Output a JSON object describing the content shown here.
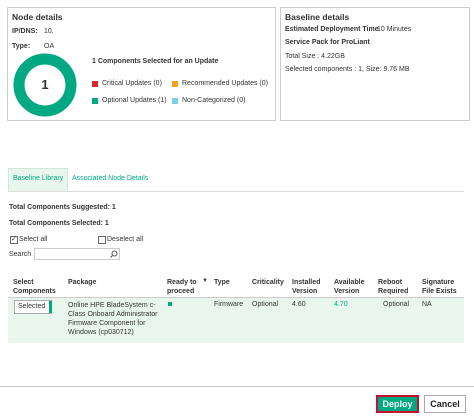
{
  "node_details": {
    "title": "Node details",
    "ip_label": "IP/DNS:",
    "ip_value": "10.",
    "type_label": "Type:",
    "type_value": "OA",
    "donut_count": "1",
    "donut_color": "#01a982",
    "summary": "1 Components Selected for an Update",
    "legend": [
      {
        "label": "Critical Updates (0)",
        "color": "#d9262c"
      },
      {
        "label": "Recommended Updates (0)",
        "color": "#f7a21b"
      },
      {
        "label": "Optional Updates (1)",
        "color": "#01a982"
      },
      {
        "label": "Non-Categorized (0)",
        "color": "#7dcfe8"
      }
    ]
  },
  "baseline_details": {
    "title": "Baseline details",
    "deployment_label": "Estimated Deployment Time",
    "deployment_value": "10 Minutes",
    "name": "Service Pack for ProLiant",
    "total_size": "Total Size : 4.22GB",
    "selected": "Selected components : 1, Size: 9.76 MB"
  },
  "tabs": [
    "Baseline Library",
    "Associated Node Details"
  ],
  "summary": {
    "suggested": "Total Components Suggested: 1",
    "selected": "Total Components Selected: 1"
  },
  "select_all": "Select all",
  "deselect_all": "Deselect all",
  "search_label": "Search",
  "table": {
    "headers": [
      "Select Components",
      "Package",
      "Ready to proceed",
      "Type",
      "Criticality",
      "Installed Version",
      "Available Version",
      "Reboot Required",
      "Signature File Exists"
    ],
    "rows": [
      {
        "select": "Selected",
        "package": "Online HPE BladeSystem c-Class Onboard Administrator Firmware Component for Windows (cp030712)",
        "type": "Firmware",
        "criticality": "Optional",
        "installed": "4.60",
        "available": "4.70",
        "reboot": "Optional",
        "signature": "NA"
      }
    ]
  },
  "buttons": {
    "deploy": "Deploy",
    "cancel": "Cancel"
  }
}
